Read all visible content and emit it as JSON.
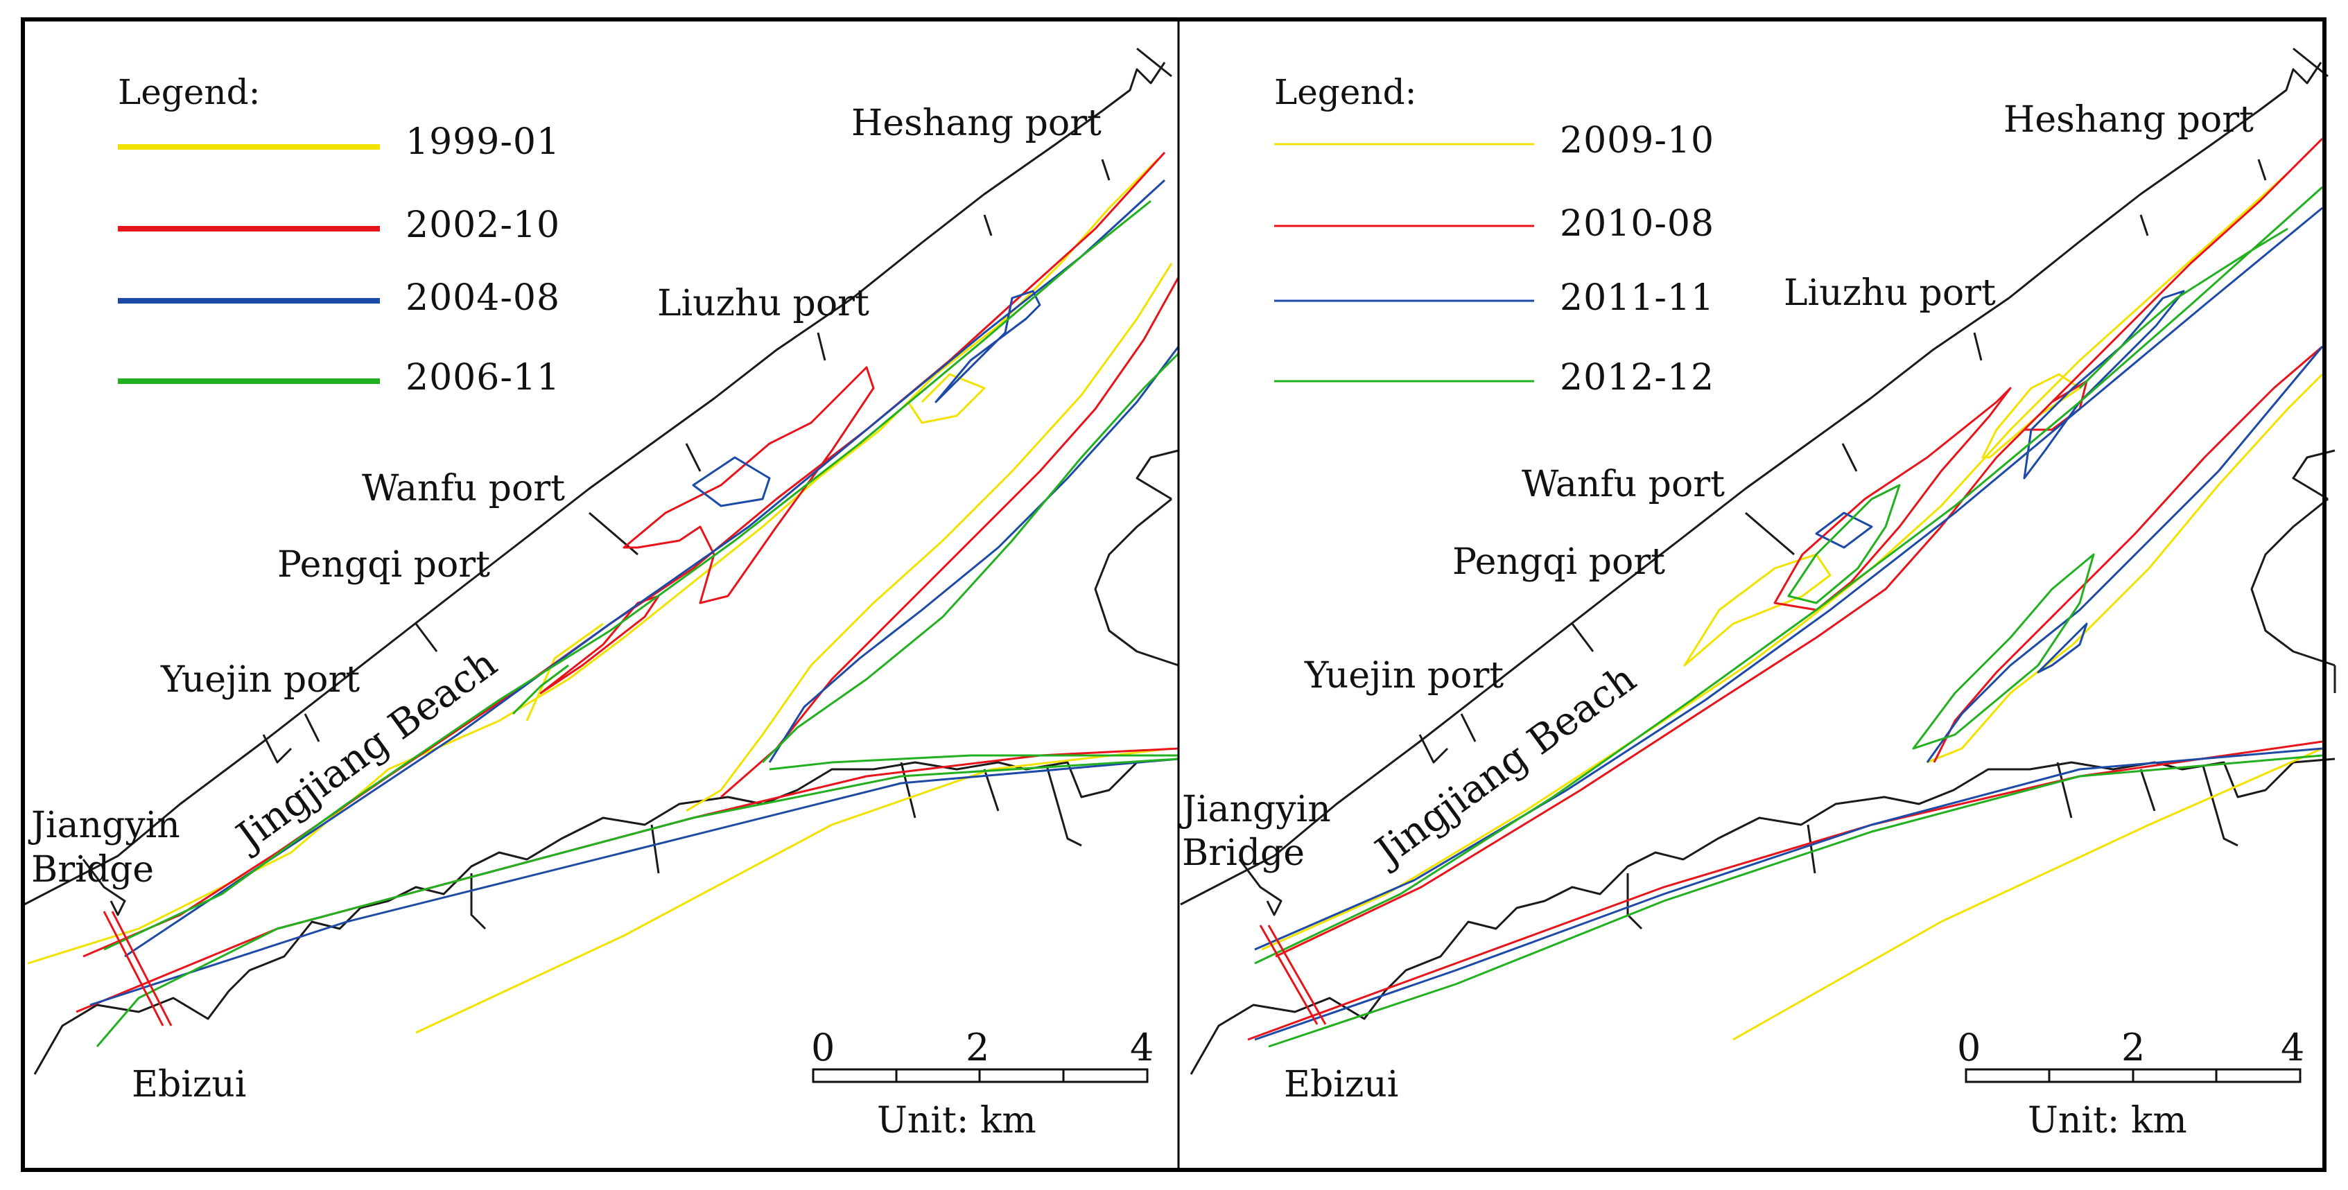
{
  "colors": {
    "yellow": "#f2e200",
    "red": "#e8141b",
    "blue": "#1d4aa6",
    "green": "#22b020",
    "outline": "#1a1a1a"
  },
  "panels": [
    {
      "legend_title": "Legend:",
      "legend": [
        {
          "label": "1999-01",
          "color": "#f2e200"
        },
        {
          "label": "2002-10",
          "color": "#e8141b"
        },
        {
          "label": "2004-08",
          "color": "#1d4aa6"
        },
        {
          "label": "2006-11",
          "color": "#22b020"
        }
      ],
      "places": {
        "heshang": "Heshang port",
        "liuzhu": "Liuzhu port",
        "wanfu": "Wanfu port",
        "pengqi": "Pengqi port",
        "yuejin": "Yuejin port",
        "beach": "Jingjiang Beach",
        "bridge_1": "Jiangyin",
        "bridge_2": "Bridge",
        "ebizui": "Ebizui"
      },
      "scale": {
        "ticks": [
          "0",
          "2",
          "4"
        ],
        "unit": "Unit: km"
      }
    },
    {
      "legend_title": "Legend:",
      "legend": [
        {
          "label": "2009-10",
          "color": "#f2e200"
        },
        {
          "label": "2010-08",
          "color": "#e8141b"
        },
        {
          "label": "2011-11",
          "color": "#1d4aa6"
        },
        {
          "label": "2012-12",
          "color": "#22b020"
        }
      ],
      "places": {
        "heshang": "Heshang port",
        "liuzhu": "Liuzhu port",
        "wanfu": "Wanfu port",
        "pengqi": "Pengqi port",
        "yuejin": "Yuejin port",
        "beach": "Jingjiang Beach",
        "bridge_1": "Jiangyin",
        "bridge_2": "Bridge",
        "ebizui": "Ebizui"
      },
      "scale": {
        "ticks": [
          "0",
          "2",
          "4"
        ],
        "unit": "Unit: km"
      }
    }
  ]
}
